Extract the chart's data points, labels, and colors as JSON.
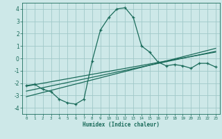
{
  "xlabel": "Humidex (Indice chaleur)",
  "background_color": "#cde8e8",
  "grid_color": "#a0c8c8",
  "line_color": "#1a6b5a",
  "x_values": [
    0,
    1,
    2,
    3,
    4,
    5,
    6,
    7,
    8,
    9,
    10,
    11,
    12,
    13,
    14,
    15,
    16,
    17,
    18,
    19,
    20,
    21,
    22,
    23
  ],
  "main_y": [
    -2.2,
    -2.1,
    -2.5,
    -2.7,
    -3.3,
    -3.6,
    -3.7,
    -3.3,
    -0.2,
    2.3,
    3.3,
    4.0,
    4.1,
    3.3,
    1.0,
    0.5,
    -0.3,
    -0.6,
    -0.5,
    -0.6,
    -0.8,
    -0.4,
    -0.4,
    -0.7
  ],
  "reg_line1": [
    -3.1,
    -2.93,
    -2.76,
    -2.59,
    -2.42,
    -2.25,
    -2.08,
    -1.91,
    -1.74,
    -1.57,
    -1.4,
    -1.23,
    -1.06,
    -0.89,
    -0.72,
    -0.55,
    -0.38,
    -0.21,
    -0.04,
    0.13,
    0.3,
    0.47,
    0.64,
    0.81
  ],
  "reg_line2": [
    -2.65,
    -2.51,
    -2.37,
    -2.23,
    -2.09,
    -1.95,
    -1.81,
    -1.67,
    -1.53,
    -1.39,
    -1.25,
    -1.11,
    -0.97,
    -0.83,
    -0.69,
    -0.55,
    -0.41,
    -0.27,
    -0.13,
    0.01,
    0.15,
    0.29,
    0.43,
    0.57
  ],
  "reg_line3": [
    -2.25,
    -2.13,
    -2.01,
    -1.89,
    -1.77,
    -1.65,
    -1.53,
    -1.41,
    -1.29,
    -1.17,
    -1.05,
    -0.93,
    -0.81,
    -0.69,
    -0.57,
    -0.45,
    -0.33,
    -0.21,
    -0.09,
    0.03,
    0.15,
    0.27,
    0.39,
    0.51
  ],
  "ylim": [
    -4.5,
    4.5
  ],
  "xlim": [
    -0.5,
    23.5
  ],
  "yticks": [
    -4,
    -3,
    -2,
    -1,
    0,
    1,
    2,
    3,
    4
  ],
  "xticks": [
    0,
    1,
    2,
    3,
    4,
    5,
    6,
    7,
    8,
    9,
    10,
    11,
    12,
    13,
    14,
    15,
    16,
    17,
    18,
    19,
    20,
    21,
    22,
    23
  ],
  "xticklabels": [
    "0",
    "1",
    "2",
    "3",
    "4",
    "5",
    "6",
    "7",
    "8",
    "9",
    "10",
    "11",
    "12",
    "13",
    "14",
    "15",
    "16",
    "17",
    "18",
    "19",
    "20",
    "21",
    "22",
    "23"
  ]
}
